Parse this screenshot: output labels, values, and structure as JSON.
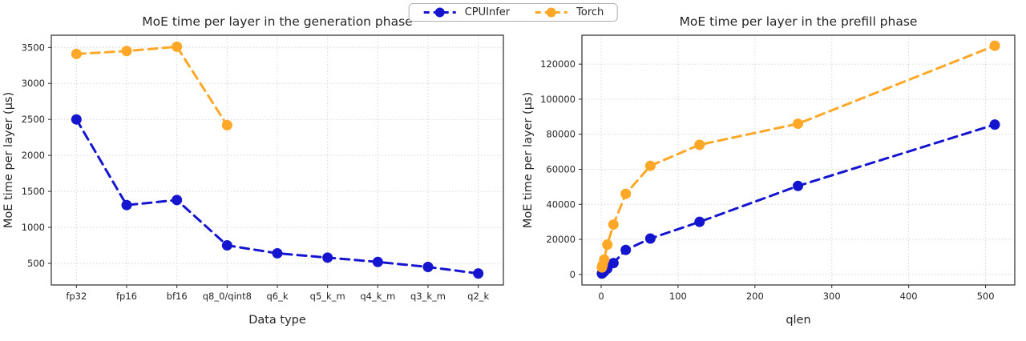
{
  "legend": {
    "items": [
      {
        "label": "CPUInfer",
        "color": "#1515d0"
      },
      {
        "label": "Torch",
        "color": "#ffa726"
      }
    ]
  },
  "chart_data": [
    {
      "type": "line",
      "title": "MoE time per layer in the generation phase",
      "xlabel": "Data type",
      "ylabel": "MoE time per layer (µs)",
      "categories": [
        "fp32",
        "fp16",
        "bf16",
        "q8_0/qint8",
        "q6_k",
        "q5_k_m",
        "q4_k_m",
        "q3_k_m",
        "q2_k"
      ],
      "yticks": [
        500,
        1000,
        1500,
        2000,
        2500,
        3000,
        3500
      ],
      "ylim": [
        200,
        3670
      ],
      "grid": true,
      "legend_position": "top-center-figure",
      "series": [
        {
          "name": "CPUInfer",
          "color": "#1515d0",
          "values": [
            2500,
            1310,
            1380,
            750,
            640,
            580,
            520,
            450,
            360
          ]
        },
        {
          "name": "Torch",
          "color": "#ffa726",
          "values": [
            3410,
            3450,
            3510,
            2420
          ]
        }
      ]
    },
    {
      "type": "line",
      "title": "MoE time per layer in the prefill phase",
      "xlabel": "qlen",
      "ylabel": "MoE time per layer (µs)",
      "x": [
        1,
        2,
        4,
        8,
        16,
        32,
        64,
        128,
        256,
        512
      ],
      "xticks": [
        0,
        100,
        200,
        300,
        400,
        500
      ],
      "xlim": [
        -25,
        538
      ],
      "yticks": [
        0,
        20000,
        40000,
        60000,
        80000,
        100000,
        120000
      ],
      "ylim": [
        -6000,
        136500
      ],
      "grid": true,
      "series": [
        {
          "name": "CPUInfer",
          "color": "#1515d0",
          "values": [
            500,
            900,
            1700,
            3300,
            6500,
            14000,
            20500,
            30000,
            50500,
            85500
          ]
        },
        {
          "name": "Torch",
          "color": "#ffa726",
          "values": [
            4000,
            5500,
            8500,
            17000,
            28500,
            46000,
            62000,
            74000,
            86000,
            130500
          ]
        }
      ]
    }
  ]
}
